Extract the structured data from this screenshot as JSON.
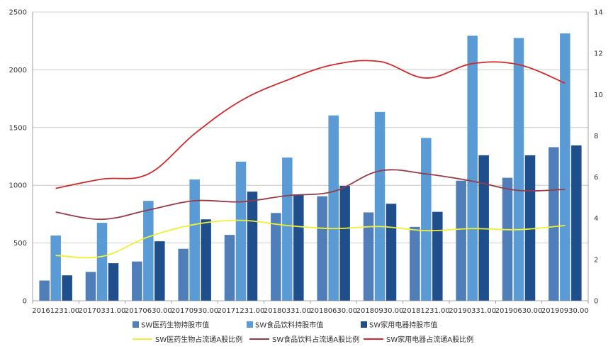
{
  "chart_data": {
    "type": "bar",
    "categories": [
      "20161231.00",
      "20170331.00",
      "20170630.00",
      "20170930.00",
      "20171231.00",
      "20180331.00",
      "20180630.00",
      "20180930.00",
      "20181231.00",
      "20190331.00",
      "20190630.00",
      "20190930.00"
    ],
    "y_left_lim": [
      0,
      2500
    ],
    "y_left_ticks": [
      "0",
      "500",
      "1000",
      "1500",
      "2000",
      "2500"
    ],
    "y_right_lim": [
      0,
      14
    ],
    "y_right_ticks": [
      "0",
      "2",
      "4",
      "6",
      "8",
      "10",
      "12",
      "14"
    ],
    "grid": true,
    "legend_position": "bottom",
    "bar_series": [
      {
        "name": "SW医药生物持股市值",
        "color": "#4f7eb8",
        "values": [
          175,
          250,
          340,
          450,
          570,
          760,
          905,
          765,
          640,
          1040,
          1065,
          1330
        ]
      },
      {
        "name": "SW食品饮料持股市值",
        "color": "#5b9bd5",
        "values": [
          565,
          675,
          865,
          1050,
          1205,
          1240,
          1605,
          1635,
          1410,
          2295,
          2275,
          2315
        ]
      },
      {
        "name": "SW家用电器持股市值",
        "color": "#1f4e8c",
        "values": [
          220,
          325,
          515,
          705,
          945,
          920,
          995,
          840,
          770,
          1260,
          1260,
          1345
        ]
      }
    ],
    "line_series": [
      {
        "name": "SW医药生物占流通A股比例",
        "color": "#f0f032",
        "values": [
          2.2,
          2.15,
          3.1,
          3.7,
          3.9,
          3.65,
          3.5,
          3.6,
          3.4,
          3.5,
          3.45,
          3.65
        ]
      },
      {
        "name": "SW食品饮料占流通A股比例",
        "color": "#963c46",
        "values": [
          4.3,
          3.95,
          4.4,
          4.85,
          4.8,
          5.1,
          5.3,
          6.3,
          6.15,
          5.8,
          5.35,
          5.4
        ]
      },
      {
        "name": "SW家用电器占流通A股比例",
        "color": "#d22a2a",
        "values": [
          5.45,
          5.9,
          6.15,
          8.1,
          9.7,
          10.7,
          11.45,
          11.6,
          10.8,
          11.5,
          11.45,
          10.55
        ]
      }
    ]
  }
}
